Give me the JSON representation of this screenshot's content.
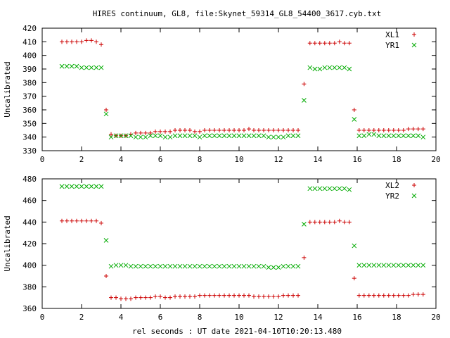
{
  "title": "HIRES continuum, GL8, file:Skynet_59314_GL8_54400_3617.cyb.txt",
  "xlabel": "rel seconds : UT date 2021-04-10T10:20:13.480",
  "chart_data": [
    {
      "type": "scatter",
      "ylabel": "Uncalibrated",
      "xlim": [
        0,
        20
      ],
      "ylim": [
        330,
        420
      ],
      "xticks": [
        0,
        2,
        4,
        6,
        8,
        10,
        12,
        14,
        16,
        18,
        20
      ],
      "yticks": [
        330,
        340,
        350,
        360,
        370,
        380,
        390,
        400,
        410,
        420
      ],
      "legend_position": "top-right",
      "series": [
        {
          "name": "XL1",
          "marker": "plus",
          "color": "#cc0000",
          "x": [
            1.0,
            1.25,
            1.5,
            1.75,
            2.0,
            2.25,
            2.5,
            2.75,
            3.0,
            3.25,
            3.5,
            3.75,
            4.0,
            4.25,
            4.5,
            4.75,
            5.0,
            5.25,
            5.5,
            5.75,
            6.0,
            6.25,
            6.5,
            6.75,
            7.0,
            7.25,
            7.5,
            7.75,
            8.0,
            8.25,
            8.5,
            8.75,
            9.0,
            9.25,
            9.5,
            9.75,
            10.0,
            10.25,
            10.5,
            10.75,
            11.0,
            11.25,
            11.5,
            11.75,
            12.0,
            12.25,
            12.5,
            12.75,
            13.0,
            13.3,
            13.6,
            13.85,
            14.1,
            14.35,
            14.6,
            14.85,
            15.1,
            15.35,
            15.6,
            15.85,
            16.1,
            16.35,
            16.6,
            16.85,
            17.1,
            17.35,
            17.6,
            17.85,
            18.1,
            18.35,
            18.6,
            18.85,
            19.1,
            19.35
          ],
          "y": [
            410,
            410,
            410,
            410,
            410,
            411,
            411,
            410,
            408,
            360,
            342,
            341,
            341,
            341,
            342,
            343,
            343,
            343,
            343,
            344,
            344,
            344,
            344,
            345,
            345,
            345,
            345,
            344,
            344,
            345,
            345,
            345,
            345,
            345,
            345,
            345,
            345,
            345,
            346,
            345,
            345,
            345,
            345,
            345,
            345,
            345,
            345,
            345,
            345,
            379,
            409,
            409,
            409,
            409,
            409,
            409,
            410,
            409,
            409,
            360,
            345,
            345,
            345,
            345,
            345,
            345,
            345,
            345,
            345,
            345,
            346,
            346,
            346,
            346
          ],
          "_note": null
        },
        {
          "name": "YR1",
          "marker": "cross",
          "color": "#00aa00",
          "x": [
            1.0,
            1.25,
            1.5,
            1.75,
            2.0,
            2.25,
            2.5,
            2.75,
            3.0,
            3.25,
            3.5,
            3.75,
            4.0,
            4.25,
            4.5,
            4.75,
            5.0,
            5.25,
            5.5,
            5.75,
            6.0,
            6.25,
            6.5,
            6.75,
            7.0,
            7.25,
            7.5,
            7.75,
            8.0,
            8.25,
            8.5,
            8.75,
            9.0,
            9.25,
            9.5,
            9.75,
            10.0,
            10.25,
            10.5,
            10.75,
            11.0,
            11.25,
            11.5,
            11.75,
            12.0,
            12.25,
            12.5,
            12.75,
            13.0,
            13.3,
            13.6,
            13.85,
            14.1,
            14.35,
            14.6,
            14.85,
            15.1,
            15.35,
            15.6,
            15.85,
            16.1,
            16.35,
            16.6,
            16.85,
            17.1,
            17.35,
            17.6,
            17.85,
            18.1,
            18.35,
            18.6,
            18.85,
            19.1,
            19.35
          ],
          "y": [
            392,
            392,
            392,
            392,
            391,
            391,
            391,
            391,
            391,
            357,
            340,
            341,
            341,
            341,
            341,
            340,
            340,
            340,
            341,
            341,
            341,
            340,
            340,
            341,
            341,
            341,
            341,
            341,
            340,
            341,
            341,
            341,
            341,
            341,
            341,
            341,
            341,
            341,
            341,
            341,
            341,
            341,
            340,
            340,
            340,
            340,
            341,
            341,
            341,
            367,
            391,
            390,
            390,
            391,
            391,
            391,
            391,
            391,
            390,
            353,
            341,
            341,
            342,
            342,
            341,
            341,
            341,
            341,
            341,
            341,
            341,
            341,
            341,
            340
          ]
        }
      ]
    },
    {
      "type": "scatter",
      "ylabel": "Uncalibrated",
      "xlim": [
        0,
        20
      ],
      "ylim": [
        360,
        480
      ],
      "xticks": [
        0,
        2,
        4,
        6,
        8,
        10,
        12,
        14,
        16,
        18,
        20
      ],
      "yticks": [
        360,
        380,
        400,
        420,
        440,
        460,
        480
      ],
      "legend_position": "top-right",
      "series": [
        {
          "name": "XL2",
          "marker": "plus",
          "color": "#cc0000",
          "x": [
            1.0,
            1.25,
            1.5,
            1.75,
            2.0,
            2.25,
            2.5,
            2.75,
            3.0,
            3.25,
            3.5,
            3.75,
            4.0,
            4.25,
            4.5,
            4.75,
            5.0,
            5.25,
            5.5,
            5.75,
            6.0,
            6.25,
            6.5,
            6.75,
            7.0,
            7.25,
            7.5,
            7.75,
            8.0,
            8.25,
            8.5,
            8.75,
            9.0,
            9.25,
            9.5,
            9.75,
            10.0,
            10.25,
            10.5,
            10.75,
            11.0,
            11.25,
            11.5,
            11.75,
            12.0,
            12.25,
            12.5,
            12.75,
            13.0,
            13.3,
            13.6,
            13.85,
            14.1,
            14.35,
            14.6,
            14.85,
            15.1,
            15.35,
            15.6,
            15.85,
            16.1,
            16.35,
            16.6,
            16.85,
            17.1,
            17.35,
            17.6,
            17.85,
            18.1,
            18.35,
            18.6,
            18.85,
            19.1,
            19.35
          ],
          "y": [
            441,
            441,
            441,
            441,
            441,
            441,
            441,
            441,
            439,
            390,
            370,
            370,
            369,
            369,
            369,
            370,
            370,
            370,
            370,
            371,
            371,
            370,
            370,
            371,
            371,
            371,
            371,
            371,
            372,
            372,
            372,
            372,
            372,
            372,
            372,
            372,
            372,
            372,
            372,
            371,
            371,
            371,
            371,
            371,
            371,
            372,
            372,
            372,
            372,
            407,
            440,
            440,
            440,
            440,
            440,
            440,
            441,
            440,
            440,
            388,
            372,
            372,
            372,
            372,
            372,
            372,
            372,
            372,
            372,
            372,
            372,
            373,
            373,
            373
          ]
        },
        {
          "name": "YR2",
          "marker": "cross",
          "color": "#00aa00",
          "x": [
            1.0,
            1.25,
            1.5,
            1.75,
            2.0,
            2.25,
            2.5,
            2.75,
            3.0,
            3.25,
            3.5,
            3.75,
            4.0,
            4.25,
            4.5,
            4.75,
            5.0,
            5.25,
            5.5,
            5.75,
            6.0,
            6.25,
            6.5,
            6.75,
            7.0,
            7.25,
            7.5,
            7.75,
            8.0,
            8.25,
            8.5,
            8.75,
            9.0,
            9.25,
            9.5,
            9.75,
            10.0,
            10.25,
            10.5,
            10.75,
            11.0,
            11.25,
            11.5,
            11.75,
            12.0,
            12.25,
            12.5,
            12.75,
            13.0,
            13.3,
            13.6,
            13.85,
            14.1,
            14.35,
            14.6,
            14.85,
            15.1,
            15.35,
            15.6,
            15.85,
            16.1,
            16.35,
            16.6,
            16.85,
            17.1,
            17.35,
            17.6,
            17.85,
            18.1,
            18.35,
            18.6,
            18.85,
            19.1,
            19.35
          ],
          "y": [
            473,
            473,
            473,
            473,
            473,
            473,
            473,
            473,
            473,
            423,
            399,
            400,
            400,
            400,
            399,
            399,
            399,
            399,
            399,
            399,
            399,
            399,
            399,
            399,
            399,
            399,
            399,
            399,
            399,
            399,
            399,
            399,
            399,
            399,
            399,
            399,
            399,
            399,
            399,
            399,
            399,
            399,
            398,
            398,
            398,
            399,
            399,
            399,
            399,
            438,
            471,
            471,
            471,
            471,
            471,
            471,
            471,
            471,
            470,
            418,
            400,
            400,
            400,
            400,
            400,
            400,
            400,
            400,
            400,
            400,
            400,
            400,
            400,
            400
          ]
        }
      ]
    }
  ]
}
